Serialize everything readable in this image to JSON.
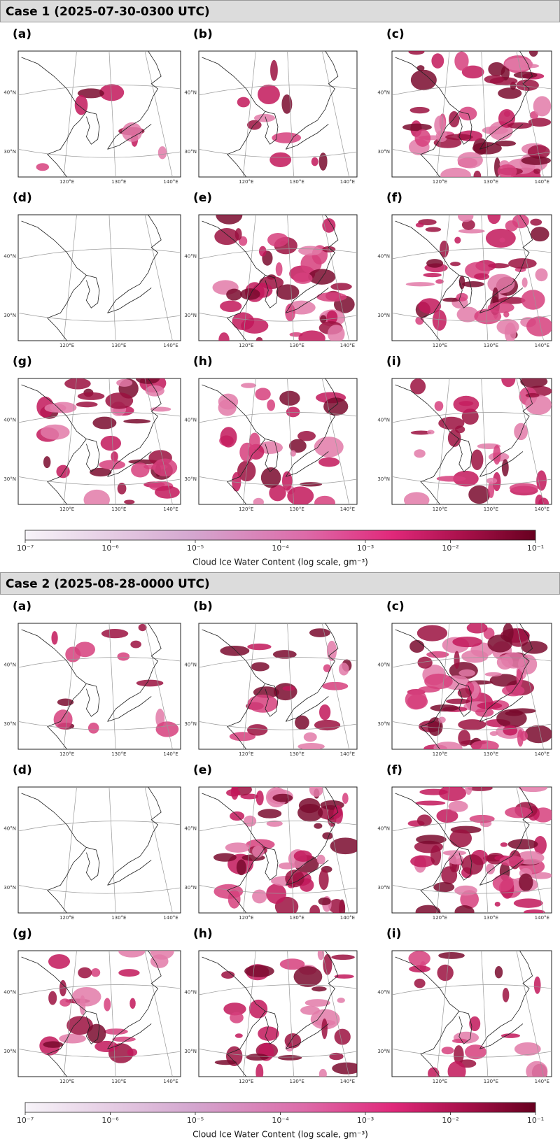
{
  "cases": [
    {
      "title": "Case 1 (2025-07-30-0300 UTC)",
      "panels": [
        "(a)",
        "(b)",
        "(c)",
        "(d)",
        "(e)",
        "(f)",
        "(g)",
        "(h)",
        "(i)"
      ],
      "map_labels": {
        "lat": [
          "40°N",
          "30°N"
        ],
        "lon": [
          "120°E",
          "130°E",
          "140°E"
        ]
      },
      "colorbar": {
        "lim": [
          1e-07,
          0.1
        ],
        "log": true,
        "ticks": [
          {
            "value": 1e-07,
            "label": "10⁻⁷"
          },
          {
            "value": 1e-06,
            "label": "10⁻⁶"
          },
          {
            "value": 1e-05,
            "label": "10⁻⁵"
          },
          {
            "value": 0.0001,
            "label": "10⁻⁴"
          },
          {
            "value": 0.001,
            "label": "10⁻³"
          },
          {
            "value": 0.01,
            "label": "10⁻²"
          },
          {
            "value": 0.1,
            "label": "10⁻¹"
          }
        ],
        "label": "Cloud Ice Water Content (log scale, gm⁻³)"
      }
    },
    {
      "title": "Case 2 (2025-08-28-0000 UTC)",
      "panels": [
        "(a)",
        "(b)",
        "(c)",
        "(d)",
        "(e)",
        "(f)",
        "(g)",
        "(h)",
        "(i)"
      ],
      "map_labels": {
        "lat": [
          "40°N",
          "30°N"
        ],
        "lon": [
          "120°E",
          "130°E",
          "140°E"
        ]
      },
      "colorbar": {
        "lim": [
          1e-07,
          0.1
        ],
        "log": true,
        "ticks": [
          {
            "value": 1e-07,
            "label": "10⁻⁷"
          },
          {
            "value": 1e-06,
            "label": "10⁻⁶"
          },
          {
            "value": 1e-05,
            "label": "10⁻⁵"
          },
          {
            "value": 0.0001,
            "label": "10⁻⁴"
          },
          {
            "value": 0.001,
            "label": "10⁻³"
          },
          {
            "value": 0.01,
            "label": "10⁻²"
          },
          {
            "value": 0.1,
            "label": "10⁻¹"
          }
        ],
        "label": "Cloud Ice Water Content (log scale, gm⁻³)"
      }
    }
  ]
}
